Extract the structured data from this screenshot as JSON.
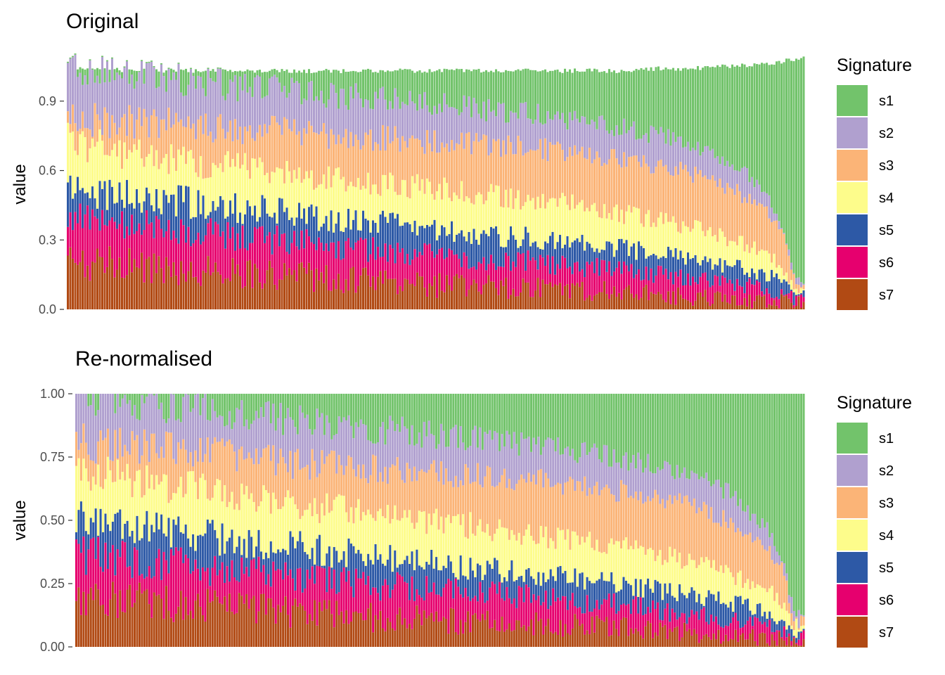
{
  "chart_data": [
    {
      "type": "bar",
      "stacked": true,
      "title": "Original",
      "ylabel": "value",
      "xlabel": "",
      "ylim": [
        0,
        1.1
      ],
      "yticks": [
        0,
        0.3,
        0.6,
        0.9
      ],
      "ytick_labels": [
        "0.0",
        "0.3",
        "0.6",
        "0.9"
      ],
      "x_tick_labels_shown": false,
      "grid": false,
      "legend": {
        "title": "Signature",
        "position": "right"
      },
      "series_order": [
        "s7",
        "s6",
        "s5",
        "s4",
        "s3",
        "s2",
        "s1"
      ],
      "n_samples_approx": 300,
      "envelope_x_fraction": [
        0,
        0.1,
        0.2,
        0.3,
        0.4,
        0.5,
        0.6,
        0.7,
        0.75,
        0.8,
        0.85,
        0.9,
        0.95,
        0.97,
        0.985,
        1.0
      ],
      "series": [
        {
          "name": "s1",
          "cumulative_top": [
            1.04,
            1.03,
            1.03,
            1.03,
            1.03,
            1.03,
            1.03,
            1.03,
            1.03,
            1.04,
            1.04,
            1.05,
            1.06,
            1.07,
            1.08,
            1.09
          ]
        },
        {
          "name": "s2",
          "cumulative_top": [
            1.03,
            1.0,
            0.97,
            0.94,
            0.91,
            0.88,
            0.85,
            0.81,
            0.78,
            0.75,
            0.71,
            0.64,
            0.5,
            0.35,
            0.15,
            0.1
          ]
        },
        {
          "name": "s3",
          "cumulative_top": [
            0.82,
            0.8,
            0.78,
            0.76,
            0.74,
            0.72,
            0.7,
            0.67,
            0.65,
            0.62,
            0.58,
            0.52,
            0.42,
            0.32,
            0.13,
            0.09
          ]
        },
        {
          "name": "s4",
          "cumulative_top": [
            0.72,
            0.66,
            0.62,
            0.58,
            0.55,
            0.52,
            0.48,
            0.44,
            0.41,
            0.38,
            0.35,
            0.3,
            0.24,
            0.18,
            0.09,
            0.07
          ]
        },
        {
          "name": "s5",
          "cumulative_top": [
            0.52,
            0.48,
            0.44,
            0.41,
            0.37,
            0.34,
            0.31,
            0.28,
            0.26,
            0.24,
            0.21,
            0.18,
            0.15,
            0.11,
            0.06,
            0.05
          ]
        },
        {
          "name": "s6",
          "cumulative_top": [
            0.38,
            0.35,
            0.32,
            0.29,
            0.26,
            0.23,
            0.21,
            0.18,
            0.17,
            0.15,
            0.13,
            0.11,
            0.08,
            0.06,
            0.04,
            0.03
          ]
        },
        {
          "name": "s7",
          "cumulative_top": [
            0.2,
            0.18,
            0.16,
            0.14,
            0.12,
            0.1,
            0.09,
            0.08,
            0.07,
            0.06,
            0.05,
            0.04,
            0.03,
            0.03,
            0.02,
            0.02
          ]
        }
      ]
    },
    {
      "type": "bar",
      "stacked": true,
      "title": "Re-normalised",
      "ylabel": "value",
      "xlabel": "",
      "ylim": [
        0,
        1.0
      ],
      "yticks": [
        0,
        0.25,
        0.5,
        0.75,
        1.0
      ],
      "ytick_labels": [
        "0.00",
        "0.25",
        "0.50",
        "0.75",
        "1.00"
      ],
      "x_tick_labels_shown": false,
      "grid": false,
      "legend": {
        "title": "Signature",
        "position": "right"
      },
      "series_order": [
        "s7",
        "s6",
        "s5",
        "s4",
        "s3",
        "s2",
        "s1"
      ],
      "n_samples_approx": 300,
      "envelope_x_fraction": [
        0,
        0.1,
        0.2,
        0.3,
        0.4,
        0.5,
        0.6,
        0.7,
        0.75,
        0.8,
        0.85,
        0.9,
        0.95,
        0.97,
        0.985,
        1.0
      ],
      "series": [
        {
          "name": "s1",
          "cumulative_top": [
            1.0,
            1.0,
            1.0,
            1.0,
            1.0,
            1.0,
            1.0,
            1.0,
            1.0,
            1.0,
            1.0,
            1.0,
            1.0,
            1.0,
            1.0,
            1.0
          ]
        },
        {
          "name": "s2",
          "cumulative_top": [
            0.98,
            0.96,
            0.92,
            0.89,
            0.86,
            0.83,
            0.8,
            0.76,
            0.74,
            0.71,
            0.67,
            0.6,
            0.46,
            0.32,
            0.14,
            0.09
          ]
        },
        {
          "name": "s3",
          "cumulative_top": [
            0.8,
            0.78,
            0.75,
            0.72,
            0.7,
            0.68,
            0.66,
            0.63,
            0.61,
            0.58,
            0.55,
            0.49,
            0.39,
            0.29,
            0.12,
            0.08
          ]
        },
        {
          "name": "s4",
          "cumulative_top": [
            0.7,
            0.64,
            0.6,
            0.56,
            0.52,
            0.49,
            0.45,
            0.41,
            0.39,
            0.36,
            0.33,
            0.28,
            0.22,
            0.17,
            0.08,
            0.06
          ]
        },
        {
          "name": "s5",
          "cumulative_top": [
            0.5,
            0.46,
            0.42,
            0.39,
            0.35,
            0.32,
            0.29,
            0.26,
            0.24,
            0.22,
            0.2,
            0.17,
            0.14,
            0.1,
            0.05,
            0.04
          ]
        },
        {
          "name": "s6",
          "cumulative_top": [
            0.36,
            0.33,
            0.3,
            0.27,
            0.24,
            0.22,
            0.2,
            0.17,
            0.16,
            0.14,
            0.12,
            0.1,
            0.08,
            0.06,
            0.04,
            0.03
          ]
        },
        {
          "name": "s7",
          "cumulative_top": [
            0.19,
            0.17,
            0.15,
            0.13,
            0.11,
            0.1,
            0.09,
            0.08,
            0.07,
            0.06,
            0.05,
            0.04,
            0.03,
            0.03,
            0.02,
            0.02
          ]
        }
      ]
    }
  ],
  "legend_colors": {
    "s1": "#72c36b",
    "s2": "#b0a0cf",
    "s3": "#fbb477",
    "s4": "#fdfc8b",
    "s5": "#2d59a6",
    "s6": "#e6006e",
    "s7": "#b14a14"
  },
  "legend_entries": [
    "s1",
    "s2",
    "s3",
    "s4",
    "s5",
    "s6",
    "s7"
  ],
  "legend_title": "Signature"
}
